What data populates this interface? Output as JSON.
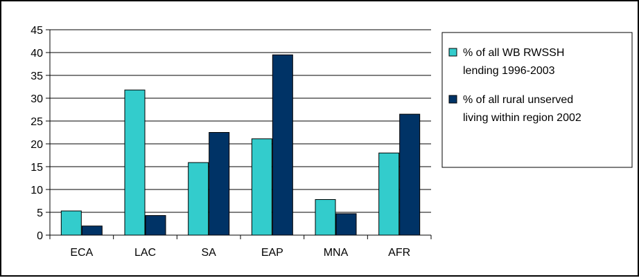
{
  "chart_data": {
    "type": "bar",
    "title": "",
    "xlabel": "",
    "ylabel": "",
    "categories": [
      "ECA",
      "LAC",
      "SA",
      "EAP",
      "MNA",
      "AFR"
    ],
    "series": [
      {
        "name": "% of all WB RWSSH lending 1996-2003",
        "legend_lines": [
          "% of all WB RWSSH",
          "lending 1996-2003"
        ],
        "color": "#33CCCC",
        "values": [
          5.3,
          31.8,
          15.9,
          21.1,
          7.8,
          18.0
        ]
      },
      {
        "name": "% of all rural unserved living within region 2002",
        "legend_lines": [
          "% of all rural unserved",
          "living within region 2002"
        ],
        "color": "#003366",
        "values": [
          2.0,
          4.3,
          22.5,
          39.5,
          4.7,
          26.5
        ]
      }
    ],
    "ylim": [
      0,
      45
    ],
    "yticks": [
      "0",
      "5",
      "10",
      "15",
      "20",
      "25",
      "30",
      "35",
      "40",
      "45"
    ],
    "grid": true,
    "legend_position": "right"
  }
}
